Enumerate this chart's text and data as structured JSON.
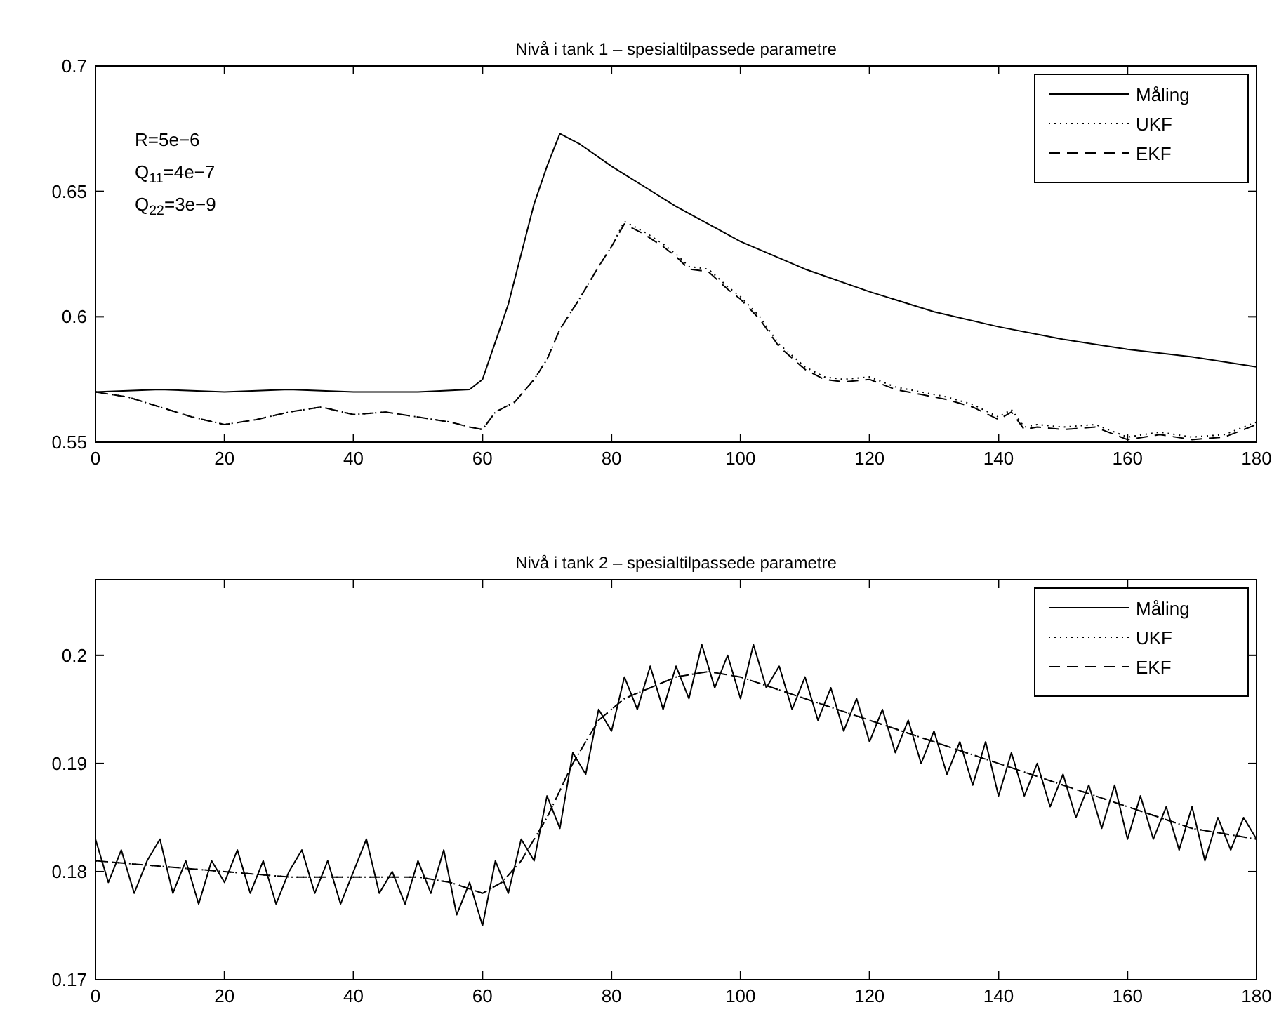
{
  "chart_data": [
    {
      "type": "line",
      "title": "Nivå i tank 1 – spesialtilpassede parametre",
      "xlim": [
        0,
        180
      ],
      "xticks": [
        0,
        20,
        40,
        60,
        80,
        100,
        120,
        140,
        160,
        180
      ],
      "ylim": [
        0.55,
        0.7
      ],
      "yticks": [
        0.55,
        0.6,
        0.65,
        0.7
      ],
      "legend": "top right",
      "grid": false,
      "annotations": [
        "R=5e−6",
        "Q$_{11}$=4e−7",
        "Q$_{22}$=3e−9"
      ],
      "series": [
        {
          "name": "Måling",
          "color": "#000000",
          "line_style": "solid",
          "x": [
            0,
            10,
            20,
            30,
            40,
            50,
            58,
            60,
            62,
            64,
            66,
            68,
            70,
            72,
            75,
            80,
            85,
            90,
            95,
            100,
            110,
            120,
            130,
            140,
            150,
            160,
            170,
            180
          ],
          "values": [
            0.57,
            0.571,
            0.57,
            0.571,
            0.57,
            0.57,
            0.571,
            0.575,
            0.59,
            0.605,
            0.625,
            0.645,
            0.66,
            0.673,
            0.669,
            0.66,
            0.652,
            0.644,
            0.637,
            0.63,
            0.619,
            0.61,
            0.602,
            0.596,
            0.591,
            0.587,
            0.584,
            0.58
          ]
        },
        {
          "name": "UKF",
          "color": "#000000",
          "line_style": "dotted",
          "x": [
            0,
            5,
            10,
            15,
            20,
            25,
            30,
            35,
            40,
            45,
            50,
            55,
            58,
            60,
            62,
            65,
            68,
            70,
            72,
            75,
            78,
            80,
            82,
            85,
            88,
            90,
            92,
            95,
            98,
            100,
            103,
            106,
            110,
            113,
            116,
            120,
            124,
            128,
            132,
            136,
            140,
            142,
            144,
            146,
            150,
            155,
            160,
            165,
            170,
            175,
            180
          ],
          "values": [
            0.57,
            0.568,
            0.564,
            0.56,
            0.557,
            0.559,
            0.562,
            0.564,
            0.561,
            0.562,
            0.56,
            0.558,
            0.556,
            0.555,
            0.562,
            0.566,
            0.575,
            0.583,
            0.595,
            0.607,
            0.62,
            0.628,
            0.638,
            0.634,
            0.629,
            0.625,
            0.62,
            0.619,
            0.612,
            0.608,
            0.6,
            0.589,
            0.58,
            0.576,
            0.575,
            0.576,
            0.572,
            0.57,
            0.568,
            0.565,
            0.56,
            0.563,
            0.556,
            0.557,
            0.556,
            0.557,
            0.552,
            0.554,
            0.552,
            0.553,
            0.558
          ]
        },
        {
          "name": "EKF",
          "color": "#000000",
          "line_style": "dashed",
          "x": [
            0,
            5,
            10,
            15,
            20,
            25,
            30,
            35,
            40,
            45,
            50,
            55,
            58,
            60,
            62,
            65,
            68,
            70,
            72,
            75,
            78,
            80,
            82,
            85,
            88,
            90,
            92,
            95,
            98,
            100,
            103,
            106,
            110,
            113,
            116,
            120,
            124,
            128,
            132,
            136,
            140,
            142,
            144,
            146,
            150,
            155,
            160,
            165,
            170,
            175,
            180
          ],
          "values": [
            0.57,
            0.568,
            0.564,
            0.56,
            0.557,
            0.559,
            0.562,
            0.564,
            0.561,
            0.562,
            0.56,
            0.558,
            0.556,
            0.555,
            0.562,
            0.566,
            0.575,
            0.583,
            0.595,
            0.607,
            0.62,
            0.628,
            0.637,
            0.633,
            0.628,
            0.624,
            0.619,
            0.618,
            0.611,
            0.607,
            0.599,
            0.588,
            0.579,
            0.575,
            0.574,
            0.575,
            0.571,
            0.569,
            0.567,
            0.564,
            0.559,
            0.562,
            0.555,
            0.556,
            0.555,
            0.556,
            0.551,
            0.553,
            0.551,
            0.552,
            0.557
          ]
        }
      ]
    },
    {
      "type": "line",
      "title": "Nivå i tank 2 – spesialtilpassede parametre",
      "xlim": [
        0,
        180
      ],
      "xticks": [
        0,
        20,
        40,
        60,
        80,
        100,
        120,
        140,
        160,
        180
      ],
      "ylim": [
        0.17,
        0.207
      ],
      "yticks": [
        0.17,
        0.18,
        0.19,
        0.2
      ],
      "legend": "top right",
      "grid": false,
      "series": [
        {
          "name": "Måling",
          "color": "#000000",
          "line_style": "solid",
          "x": [
            0,
            2,
            4,
            6,
            8,
            10,
            12,
            14,
            16,
            18,
            20,
            22,
            24,
            26,
            28,
            30,
            32,
            34,
            36,
            38,
            40,
            42,
            44,
            46,
            48,
            50,
            52,
            54,
            56,
            58,
            60,
            62,
            64,
            66,
            68,
            70,
            72,
            74,
            76,
            78,
            80,
            82,
            84,
            86,
            88,
            90,
            92,
            94,
            96,
            98,
            100,
            102,
            104,
            106,
            108,
            110,
            112,
            114,
            116,
            118,
            120,
            122,
            124,
            126,
            128,
            130,
            132,
            134,
            136,
            138,
            140,
            142,
            144,
            146,
            148,
            150,
            152,
            154,
            156,
            158,
            160,
            162,
            164,
            166,
            168,
            170,
            172,
            174,
            176,
            178,
            180
          ],
          "values": [
            0.183,
            0.179,
            0.182,
            0.178,
            0.181,
            0.183,
            0.178,
            0.181,
            0.177,
            0.181,
            0.179,
            0.182,
            0.178,
            0.181,
            0.177,
            0.18,
            0.182,
            0.178,
            0.181,
            0.177,
            0.18,
            0.183,
            0.178,
            0.18,
            0.177,
            0.181,
            0.178,
            0.182,
            0.176,
            0.179,
            0.175,
            0.181,
            0.178,
            0.183,
            0.181,
            0.187,
            0.184,
            0.191,
            0.189,
            0.195,
            0.193,
            0.198,
            0.195,
            0.199,
            0.195,
            0.199,
            0.196,
            0.201,
            0.197,
            0.2,
            0.196,
            0.201,
            0.197,
            0.199,
            0.195,
            0.198,
            0.194,
            0.197,
            0.193,
            0.196,
            0.192,
            0.195,
            0.191,
            0.194,
            0.19,
            0.193,
            0.189,
            0.192,
            0.188,
            0.192,
            0.187,
            0.191,
            0.187,
            0.19,
            0.186,
            0.189,
            0.185,
            0.188,
            0.184,
            0.188,
            0.183,
            0.187,
            0.183,
            0.186,
            0.182,
            0.186,
            0.181,
            0.185,
            0.182,
            0.185,
            0.183
          ]
        },
        {
          "name": "UKF",
          "color": "#000000",
          "line_style": "dotted",
          "x": [
            0,
            10,
            20,
            30,
            40,
            50,
            55,
            60,
            63,
            66,
            70,
            74,
            78,
            82,
            86,
            90,
            95,
            100,
            105,
            110,
            115,
            120,
            125,
            130,
            135,
            140,
            145,
            150,
            155,
            160,
            165,
            170,
            175,
            180
          ],
          "values": [
            0.181,
            0.1805,
            0.18,
            0.1795,
            0.1795,
            0.1795,
            0.179,
            0.178,
            0.179,
            0.181,
            0.185,
            0.19,
            0.194,
            0.196,
            0.197,
            0.198,
            0.1985,
            0.198,
            0.197,
            0.196,
            0.195,
            0.194,
            0.193,
            0.192,
            0.191,
            0.19,
            0.189,
            0.188,
            0.187,
            0.186,
            0.185,
            0.184,
            0.1835,
            0.183
          ]
        },
        {
          "name": "EKF",
          "color": "#000000",
          "line_style": "dashed",
          "x": [
            0,
            10,
            20,
            30,
            40,
            50,
            55,
            60,
            63,
            66,
            70,
            74,
            78,
            82,
            86,
            90,
            95,
            100,
            105,
            110,
            115,
            120,
            125,
            130,
            135,
            140,
            145,
            150,
            155,
            160,
            165,
            170,
            175,
            180
          ],
          "values": [
            0.181,
            0.1805,
            0.18,
            0.1795,
            0.1795,
            0.1795,
            0.179,
            0.178,
            0.179,
            0.181,
            0.185,
            0.19,
            0.194,
            0.196,
            0.197,
            0.198,
            0.1985,
            0.198,
            0.197,
            0.196,
            0.195,
            0.194,
            0.193,
            0.192,
            0.191,
            0.19,
            0.189,
            0.188,
            0.187,
            0.186,
            0.185,
            0.184,
            0.1835,
            0.183
          ]
        }
      ]
    }
  ]
}
